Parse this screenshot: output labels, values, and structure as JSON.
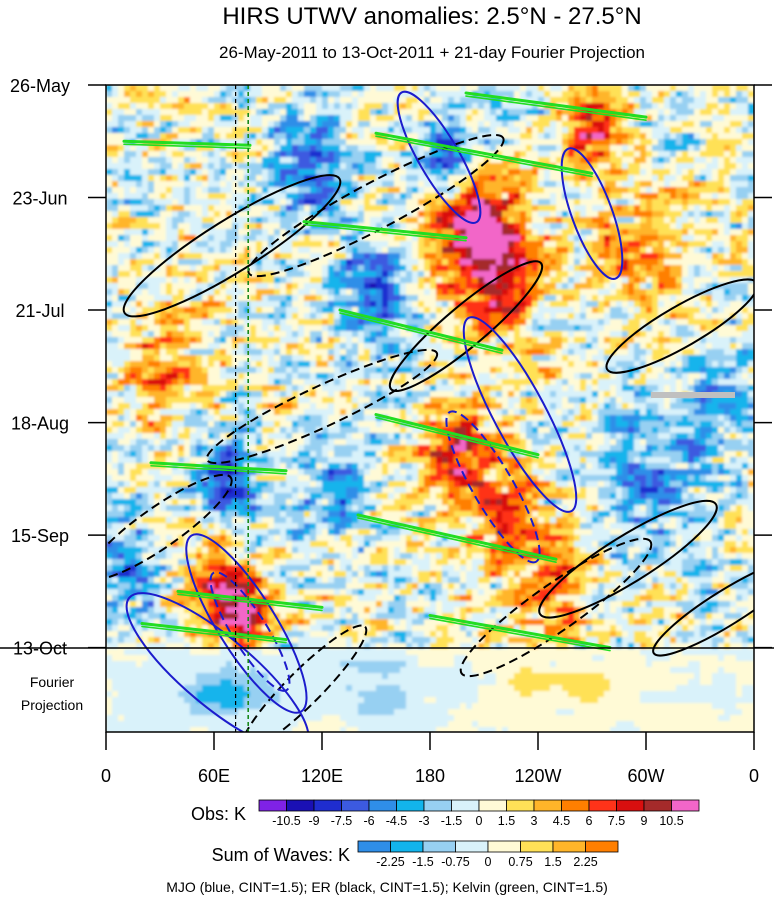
{
  "chart_data": {
    "type": "heatmap",
    "title": "HIRS UTWV anomalies: 2.5°N - 27.5°N",
    "subtitle": "26-May-2011 to 13-Oct-2011 + 21-day Fourier Projection",
    "x_ticks": [
      "0",
      "60E",
      "120E",
      "180",
      "120W",
      "60W",
      "0"
    ],
    "x_tick_lon": [
      0,
      60,
      120,
      180,
      240,
      300,
      360
    ],
    "xlim": [
      0,
      360
    ],
    "y_ticks": [
      "26-May",
      "23-Jun",
      "21-Jul",
      "18-Aug",
      "15-Sep",
      "13-Oct"
    ],
    "y_tick_day": [
      0,
      28,
      56,
      84,
      112,
      140
    ],
    "ylim_days": [
      0,
      161
    ],
    "projection_days": 21,
    "projection_label": [
      "Fourier",
      "Projection"
    ],
    "dashed_lines_lon": [
      72,
      79
    ],
    "obs_legend": {
      "label": "Obs: K",
      "levels": [
        "-10.5",
        "-9",
        "-7.5",
        "-6",
        "-4.5",
        "-3",
        "-1.5",
        "0",
        "1.5",
        "3",
        "4.5",
        "6",
        "7.5",
        "9",
        "10.5"
      ],
      "colors": [
        "#7f22e6",
        "#1a10b4",
        "#1f2dcf",
        "#3c5ae0",
        "#2f8ee8",
        "#12b4ec",
        "#97d0f2",
        "#d9f2fa",
        "#fffad6",
        "#ffe157",
        "#ffb529",
        "#ff7f00",
        "#ff3319",
        "#d90f0f",
        "#a52a2a",
        "#f266c8"
      ]
    },
    "waves_legend": {
      "label": "Sum of Waves: K",
      "levels": [
        "-2.25",
        "-1.5",
        "-0.75",
        "0",
        "0.75",
        "1.5",
        "2.25"
      ],
      "colors": [
        "#2f8ee8",
        "#12b4ec",
        "#97d0f2",
        "#d9f2fa",
        "#fffad6",
        "#ffe157",
        "#ffb529",
        "#ff7f00"
      ]
    },
    "footer": "MJO (blue, CINT=1.5); ER (black, CINT=1.5); Kelvin (green, CINT=1.5)",
    "mjo_contours": [
      {
        "lon": 78,
        "day": 134,
        "rx": 36,
        "ry": 10,
        "deg": 58,
        "dashed": false
      },
      {
        "lon": 80,
        "day": 136,
        "rx": 24,
        "ry": 6,
        "deg": 58,
        "dashed": true
      },
      {
        "lon": 62,
        "day": 146,
        "rx": 40,
        "ry": 12,
        "deg": 40,
        "dashed": false
      },
      {
        "lon": 230,
        "day": 82,
        "rx": 38,
        "ry": 9,
        "deg": 62,
        "dashed": false
      },
      {
        "lon": 215,
        "day": 100,
        "rx": 30,
        "ry": 7,
        "deg": 60,
        "dashed": true
      },
      {
        "lon": 185,
        "day": 18,
        "rx": 26,
        "ry": 7,
        "deg": 60,
        "dashed": false
      },
      {
        "lon": 270,
        "day": 32,
        "rx": 24,
        "ry": 7,
        "deg": 70,
        "dashed": false
      }
    ],
    "er_contours": [
      {
        "lon": 70,
        "day": 40,
        "rx": 44,
        "ry": 9,
        "deg": -32,
        "dashed": false
      },
      {
        "lon": 150,
        "day": 30,
        "rx": 50,
        "ry": 8,
        "deg": -28,
        "dashed": true
      },
      {
        "lon": 290,
        "day": 118,
        "rx": 36,
        "ry": 8,
        "deg": -32,
        "dashed": false
      },
      {
        "lon": 250,
        "day": 130,
        "rx": 40,
        "ry": 8,
        "deg": -35,
        "dashed": true
      },
      {
        "lon": 120,
        "day": 80,
        "rx": 44,
        "ry": 7,
        "deg": -25,
        "dashed": true
      },
      {
        "lon": 320,
        "day": 60,
        "rx": 30,
        "ry": 7,
        "deg": -30,
        "dashed": false
      },
      {
        "lon": 30,
        "day": 110,
        "rx": 30,
        "ry": 7,
        "deg": -35,
        "dashed": true
      },
      {
        "lon": 200,
        "day": 60,
        "rx": 34,
        "ry": 7,
        "deg": -40,
        "dashed": false
      },
      {
        "lon": 110,
        "day": 150,
        "rx": 30,
        "ry": 6,
        "deg": -45,
        "dashed": true
      },
      {
        "lon": 345,
        "day": 130,
        "rx": 30,
        "ry": 6,
        "deg": -32,
        "dashed": false
      }
    ],
    "kelvin_streaks": [
      {
        "lon0": 300,
        "day0": 8,
        "lon1": 200,
        "day1": 2
      },
      {
        "lon0": 270,
        "day0": 22,
        "lon1": 150,
        "day1": 12
      },
      {
        "lon0": 200,
        "day0": 38,
        "lon1": 110,
        "day1": 34
      },
      {
        "lon0": 220,
        "day0": 66,
        "lon1": 130,
        "day1": 56
      },
      {
        "lon0": 240,
        "day0": 92,
        "lon1": 150,
        "day1": 82
      },
      {
        "lon0": 250,
        "day0": 118,
        "lon1": 140,
        "day1": 107
      },
      {
        "lon0": 120,
        "day0": 130,
        "lon1": 40,
        "day1": 126
      },
      {
        "lon0": 100,
        "day0": 138,
        "lon1": 20,
        "day1": 134
      },
      {
        "lon0": 280,
        "day0": 140,
        "lon1": 180,
        "day1": 132
      },
      {
        "lon0": 80,
        "day0": 15,
        "lon1": 10,
        "day1": 14
      },
      {
        "lon0": 100,
        "day0": 96,
        "lon1": 25,
        "day1": 94
      }
    ]
  }
}
